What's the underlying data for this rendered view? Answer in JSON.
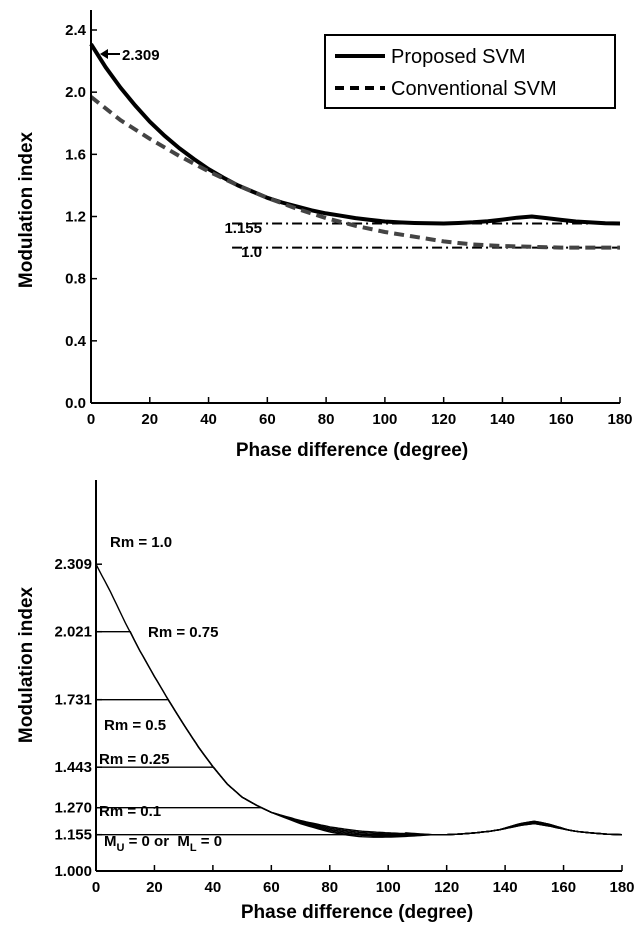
{
  "chart_data": [
    {
      "type": "line",
      "xlabel": "Phase difference (degree)",
      "ylabel": "Modulation index",
      "xlim": [
        0,
        180
      ],
      "ylim": [
        0,
        2.4
      ],
      "xticks": [
        "0",
        "20",
        "40",
        "60",
        "80",
        "100",
        "120",
        "140",
        "160",
        "180"
      ],
      "yticks": [
        "0.0",
        "0.4",
        "0.8",
        "1.2",
        "1.6",
        "2.0",
        "2.4"
      ],
      "legend": {
        "position": "top-right",
        "entries": [
          "Proposed SVM",
          "Conventional SVM"
        ]
      },
      "annotations": [
        "2.309",
        "1.155",
        "1.0"
      ],
      "reference_lines": [
        {
          "label": "1.155",
          "y": 1.155,
          "x_start": 48
        },
        {
          "label": "1.0",
          "y": 1.0,
          "x_start": 48
        }
      ],
      "series": [
        {
          "name": "Proposed SVM",
          "style": "solid-thick",
          "x": [
            0,
            5,
            10,
            15,
            20,
            25,
            30,
            35,
            40,
            45,
            50,
            55,
            60,
            65,
            70,
            75,
            80,
            85,
            90,
            95,
            100,
            105,
            110,
            115,
            120,
            125,
            130,
            135,
            140,
            145,
            150,
            155,
            160,
            165,
            170,
            175,
            180
          ],
          "y": [
            2.309,
            2.16,
            2.03,
            1.915,
            1.81,
            1.72,
            1.64,
            1.57,
            1.505,
            1.45,
            1.4,
            1.36,
            1.32,
            1.29,
            1.265,
            1.24,
            1.22,
            1.205,
            1.19,
            1.178,
            1.168,
            1.162,
            1.158,
            1.156,
            1.155,
            1.158,
            1.163,
            1.17,
            1.18,
            1.192,
            1.2,
            1.19,
            1.178,
            1.168,
            1.162,
            1.157,
            1.155
          ]
        },
        {
          "name": "Conventional SVM",
          "style": "dashed",
          "x": [
            0,
            10,
            20,
            30,
            40,
            50,
            60,
            70,
            80,
            90,
            100,
            110,
            120,
            130,
            140,
            150,
            160,
            170,
            180
          ],
          "y": [
            1.97,
            1.82,
            1.7,
            1.59,
            1.49,
            1.4,
            1.32,
            1.25,
            1.19,
            1.14,
            1.1,
            1.07,
            1.04,
            1.02,
            1.01,
            1.005,
            1.0,
            1.0,
            1.0
          ]
        }
      ]
    },
    {
      "type": "line",
      "xlabel": "Phase difference (degree)",
      "ylabel": "Modulation index",
      "xlim": [
        0,
        180
      ],
      "ylim": [
        1.0,
        2.6
      ],
      "xticks": [
        "0",
        "20",
        "40",
        "60",
        "80",
        "100",
        "120",
        "140",
        "160",
        "180"
      ],
      "yticks": [
        "1.000",
        "1.155",
        "1.270",
        "1.443",
        "1.731",
        "2.021",
        "2.309"
      ],
      "ytick_values": [
        1.0,
        1.155,
        1.27,
        1.443,
        1.731,
        2.021,
        2.309
      ],
      "curve_labels": [
        "Rm = 1.0",
        "Rm = 0.75",
        "Rm = 0.5",
        "Rm = 0.25",
        "Rm = 0.1"
      ],
      "bottom_label": {
        "m": "M",
        "u": "U",
        "mid": " = 0 or  ",
        "l": "L",
        "end": " = 0"
      },
      "envelope": {
        "x": [
          0,
          5,
          10,
          15,
          20,
          25,
          30,
          35,
          40,
          45,
          50,
          55,
          60,
          65,
          70,
          75,
          80,
          85,
          90,
          95,
          100,
          105,
          110,
          115,
          120,
          125,
          130,
          135,
          140,
          145,
          150,
          155,
          160,
          165,
          170,
          175,
          180
        ],
        "y": [
          2.309,
          2.19,
          2.06,
          1.94,
          1.83,
          1.725,
          1.625,
          1.53,
          1.445,
          1.37,
          1.315,
          1.28,
          1.25,
          1.23,
          1.21,
          1.195,
          1.18,
          1.17,
          1.162,
          1.158,
          1.156,
          1.155,
          1.155,
          1.155,
          1.155,
          1.158,
          1.163,
          1.17,
          1.18,
          1.192,
          1.2,
          1.19,
          1.178,
          1.168,
          1.162,
          1.157,
          1.155
        ]
      },
      "series": [
        {
          "name": "Rm = 1.0",
          "plateau": 2.309
        },
        {
          "name": "Rm = 0.75",
          "plateau": 2.021
        },
        {
          "name": "Rm = 0.5",
          "plateau": 1.731
        },
        {
          "name": "Rm = 0.25",
          "plateau": 1.443
        },
        {
          "name": "Rm = 0.1",
          "plateau": 1.27
        },
        {
          "name": "M_U = 0 or M_L = 0",
          "plateau": 1.155
        }
      ]
    }
  ]
}
